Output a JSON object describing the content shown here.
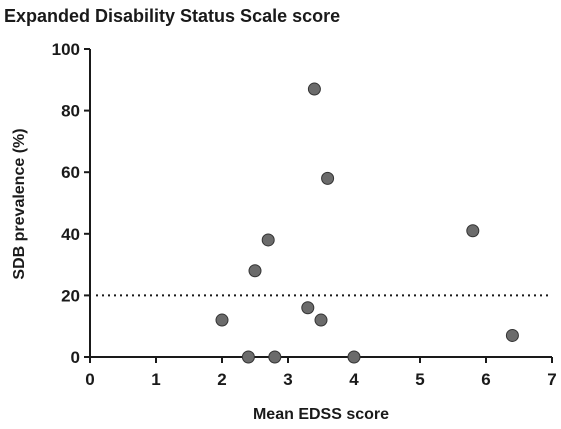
{
  "chart_data": {
    "type": "scatter",
    "title": "Expanded Disability Status Scale score",
    "xlabel": "Mean EDSS score",
    "ylabel": "SDB prevalence (%)",
    "xlim": [
      0,
      7
    ],
    "ylim": [
      0,
      100
    ],
    "xticks": [
      "0",
      "1",
      "2",
      "3",
      "4",
      "5",
      "6",
      "7"
    ],
    "yticks": [
      "0",
      "20",
      "40",
      "60",
      "80",
      "100"
    ],
    "grid": false,
    "point_color": "#6b6b6b",
    "reference_line": {
      "y": 20,
      "style": "dotted"
    },
    "points": [
      {
        "x": 2.0,
        "y": 12
      },
      {
        "x": 2.4,
        "y": 0
      },
      {
        "x": 2.5,
        "y": 28
      },
      {
        "x": 2.7,
        "y": 38
      },
      {
        "x": 2.8,
        "y": 0
      },
      {
        "x": 3.3,
        "y": 16
      },
      {
        "x": 3.4,
        "y": 87
      },
      {
        "x": 3.5,
        "y": 12
      },
      {
        "x": 3.6,
        "y": 58
      },
      {
        "x": 4.0,
        "y": 0
      },
      {
        "x": 5.8,
        "y": 41
      },
      {
        "x": 6.4,
        "y": 7
      }
    ]
  }
}
